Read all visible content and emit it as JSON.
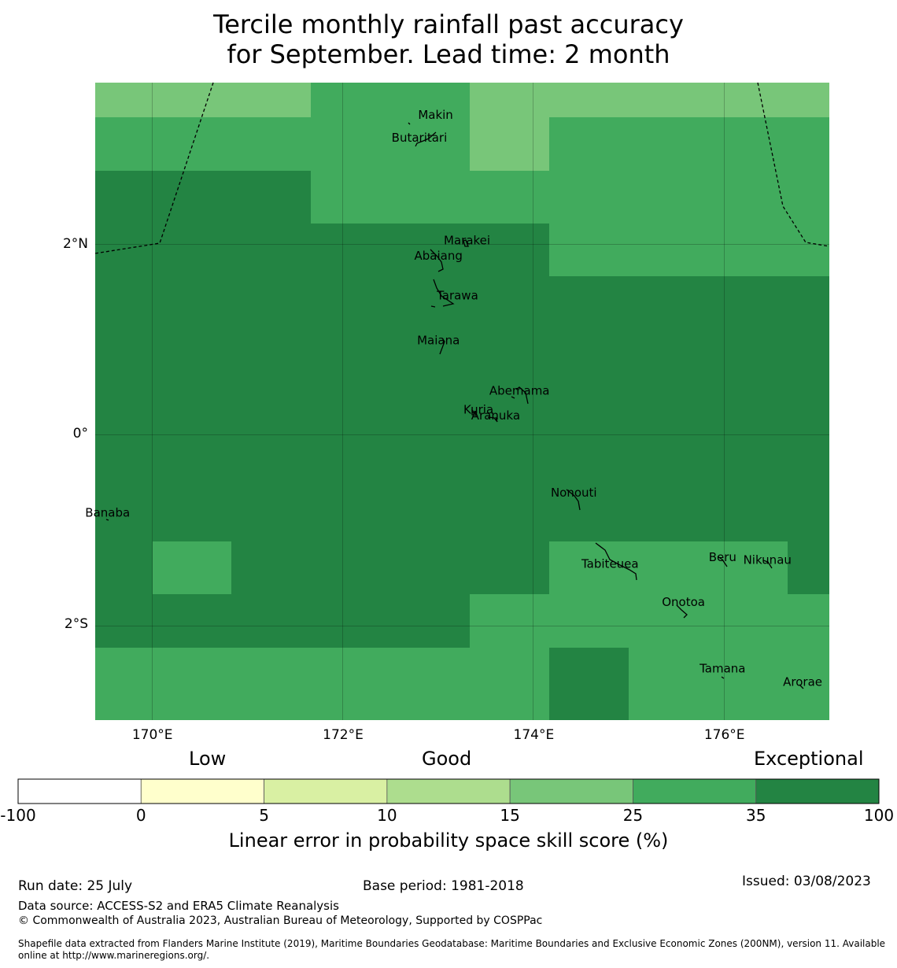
{
  "title_line1": "Tercile monthly rainfall past accuracy",
  "title_line2": "for September. Lead time: 2 month",
  "map": {
    "lon_range": [
      169.4,
      177.1
    ],
    "lat_range": [
      -3.0,
      3.7
    ],
    "colors": {
      "c25": "#78c679",
      "c35": "#41ab5d",
      "c100": "#238443"
    },
    "lon_ticks": [
      {
        "value": 170,
        "label": "170°E"
      },
      {
        "value": 172,
        "label": "172°E"
      },
      {
        "value": 174,
        "label": "174°E"
      },
      {
        "value": 176,
        "label": "176°E"
      }
    ],
    "lat_ticks": [
      {
        "value": 2,
        "label": "2°N"
      },
      {
        "value": 0,
        "label": "0°"
      },
      {
        "value": -2,
        "label": "2°S"
      }
    ],
    "islands": [
      {
        "name": "Makin",
        "lon": 172.97,
        "lat": 3.32
      },
      {
        "name": "Butaritari",
        "lon": 172.8,
        "lat": 3.08
      },
      {
        "name": "Marakei",
        "lon": 173.3,
        "lat": 2.0
      },
      {
        "name": "Abaiang",
        "lon": 173.0,
        "lat": 1.84
      },
      {
        "name": "Tarawa",
        "lon": 173.2,
        "lat": 1.42
      },
      {
        "name": "Maiana",
        "lon": 173.0,
        "lat": 0.95
      },
      {
        "name": "Abemama",
        "lon": 173.85,
        "lat": 0.42
      },
      {
        "name": "Kuria",
        "lon": 173.42,
        "lat": 0.22
      },
      {
        "name": "Aranuka",
        "lon": 173.6,
        "lat": 0.16
      },
      {
        "name": "Nonouti",
        "lon": 174.42,
        "lat": -0.65
      },
      {
        "name": "Banaba",
        "lon": 169.53,
        "lat": -0.86
      },
      {
        "name": "Tabiteuea",
        "lon": 174.8,
        "lat": -1.4
      },
      {
        "name": "Beru",
        "lon": 175.98,
        "lat": -1.33
      },
      {
        "name": "Nikunau",
        "lon": 176.45,
        "lat": -1.36
      },
      {
        "name": "Onotoa",
        "lon": 175.57,
        "lat": -1.8
      },
      {
        "name": "Tamana",
        "lon": 175.98,
        "lat": -2.5
      },
      {
        "name": "Arorae",
        "lon": 176.82,
        "lat": -2.64
      }
    ]
  },
  "colorbar": {
    "categories": [
      {
        "label": "Low"
      },
      {
        "label": "Good"
      },
      {
        "label": "Exceptional"
      }
    ],
    "bins": [
      {
        "from": "-100",
        "to": "0",
        "color": "#ffffff"
      },
      {
        "from": "0",
        "to": "5",
        "color": "#ffffcc"
      },
      {
        "from": "5",
        "to": "10",
        "color": "#d9f0a3"
      },
      {
        "from": "10",
        "to": "15",
        "color": "#addd8e"
      },
      {
        "from": "15",
        "to": "25",
        "color": "#78c679"
      },
      {
        "from": "25",
        "to": "35",
        "color": "#41ab5d"
      },
      {
        "from": "35",
        "to": "100",
        "color": "#238443"
      }
    ],
    "ticks": [
      "-100",
      "0",
      "5",
      "10",
      "15",
      "25",
      "35",
      "100"
    ],
    "title": "Linear error in probability space skill score (%)"
  },
  "footer": {
    "run_date": "Run date: 25 July",
    "base_period": "Base period: 1981-2018",
    "issued": "Issued: 03/08/2023",
    "data_source": "Data source: ACCESS-S2 and ERA5 Climate Reanalysis",
    "copyright": "© Commonwealth of Australia 2023, Australian Bureau of Meteorology, Supported by COSPPac",
    "shapefile_line1": "Shapefile data extracted from Flanders Marine Institute (2019), Maritime Boundaries Geodatabase: Maritime Boundaries and Exclusive Economic Zones (200NM), version 11. Available",
    "shapefile_line2": "online at http://www.marineregions.org/."
  }
}
